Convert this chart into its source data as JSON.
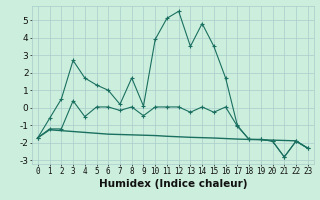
{
  "title": "",
  "xlabel": "Humidex (Indice chaleur)",
  "background_color": "#cceedd",
  "line_color": "#1a7060",
  "x": [
    0,
    1,
    2,
    3,
    4,
    5,
    6,
    7,
    8,
    9,
    10,
    11,
    12,
    13,
    14,
    15,
    16,
    17,
    18,
    19,
    20,
    21,
    22,
    23
  ],
  "y_line1": [
    -1.7,
    -0.6,
    0.5,
    2.7,
    1.7,
    1.3,
    1.0,
    0.2,
    1.7,
    0.1,
    3.9,
    5.1,
    5.5,
    3.5,
    4.8,
    3.5,
    1.7,
    -1.0,
    -1.8,
    -1.8,
    -1.9,
    -2.8,
    -1.9,
    -2.3
  ],
  "y_line2": [
    -1.7,
    -1.2,
    -1.2,
    0.4,
    -0.5,
    0.05,
    0.05,
    -0.15,
    0.05,
    -0.45,
    0.05,
    0.05,
    0.05,
    -0.25,
    0.05,
    -0.25,
    0.05,
    -1.05,
    -1.8,
    -1.8,
    -1.9,
    -2.8,
    -1.9,
    -2.3
  ],
  "y_line3": [
    -1.7,
    -1.25,
    -1.3,
    -1.35,
    -1.4,
    -1.45,
    -1.5,
    -1.52,
    -1.54,
    -1.56,
    -1.58,
    -1.62,
    -1.65,
    -1.68,
    -1.7,
    -1.72,
    -1.75,
    -1.78,
    -1.8,
    -1.82,
    -1.84,
    -1.86,
    -1.88,
    -2.3
  ],
  "ylim": [
    -3.2,
    5.8
  ],
  "xlim": [
    -0.5,
    23.5
  ],
  "yticks": [
    -3,
    -2,
    -1,
    0,
    1,
    2,
    3,
    4,
    5
  ],
  "grid_color": "#aacccc",
  "font_color": "#111111",
  "font_size": 6.5,
  "xlabel_fontsize": 7.5
}
